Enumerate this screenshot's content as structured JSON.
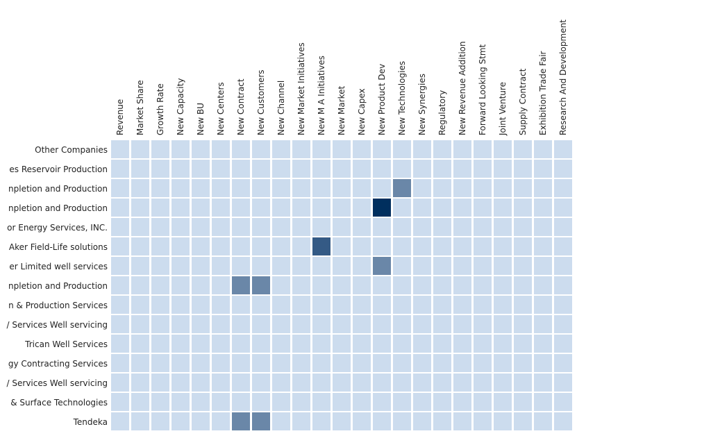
{
  "chart_data": {
    "type": "heatmap",
    "columns": [
      "Revenue",
      "Market Share",
      "Growth Rate",
      "New Capacity",
      "New BU",
      "New Centers",
      "New Contract",
      "New Customers",
      "New Channel",
      "New Market Initiatives",
      "New M A Initiatives",
      "New Market",
      "New Capex",
      "New Product Dev",
      "New Technologies",
      "New Synergies",
      "Regulatory",
      "New Revenue Addition",
      "Forward Looking Stmt",
      "Joint Venture",
      "Supply Contract",
      "Exhibition Trade Fair",
      "Research And Development"
    ],
    "rows": [
      "Other Companies",
      "es Reservoir Production",
      "npletion and Production",
      "npletion and Production",
      "or Energy Services, INC.",
      "Aker Field-Life solutions",
      "er Limited well services",
      "npletion and Production",
      "n & Production Services",
      "/ Services Well servicing",
      "Trican Well Services",
      "gy Contracting Services",
      "/ Services Well servicing",
      "& Surface Technologies",
      "Tendeka"
    ],
    "values": [
      [
        0,
        0,
        0,
        0,
        0,
        0,
        0,
        0,
        0,
        0,
        0,
        0,
        0,
        0,
        0,
        0,
        0,
        0,
        0,
        0,
        0,
        0,
        0
      ],
      [
        0,
        0,
        0,
        0,
        0,
        0,
        0,
        0,
        0,
        0,
        0,
        0,
        0,
        0,
        0,
        0,
        0,
        0,
        0,
        0,
        0,
        0,
        0
      ],
      [
        0,
        0,
        0,
        0,
        0,
        0,
        0,
        0,
        0,
        0,
        0,
        0,
        0,
        0,
        1,
        0,
        0,
        0,
        0,
        0,
        0,
        0,
        0
      ],
      [
        0,
        0,
        0,
        0,
        0,
        0,
        0,
        0,
        0,
        0,
        0,
        0,
        0,
        3,
        0,
        0,
        0,
        0,
        0,
        0,
        0,
        0,
        0
      ],
      [
        0,
        0,
        0,
        0,
        0,
        0,
        0,
        0,
        0,
        0,
        0,
        0,
        0,
        0,
        0,
        0,
        0,
        0,
        0,
        0,
        0,
        0,
        0
      ],
      [
        0,
        0,
        0,
        0,
        0,
        0,
        0,
        0,
        0,
        0,
        2,
        0,
        0,
        0,
        0,
        0,
        0,
        0,
        0,
        0,
        0,
        0,
        0
      ],
      [
        0,
        0,
        0,
        0,
        0,
        0,
        0,
        0,
        0,
        0,
        0,
        0,
        0,
        1,
        0,
        0,
        0,
        0,
        0,
        0,
        0,
        0,
        0
      ],
      [
        0,
        0,
        0,
        0,
        0,
        0,
        1,
        1,
        0,
        0,
        0,
        0,
        0,
        0,
        0,
        0,
        0,
        0,
        0,
        0,
        0,
        0,
        0
      ],
      [
        0,
        0,
        0,
        0,
        0,
        0,
        0,
        0,
        0,
        0,
        0,
        0,
        0,
        0,
        0,
        0,
        0,
        0,
        0,
        0,
        0,
        0,
        0
      ],
      [
        0,
        0,
        0,
        0,
        0,
        0,
        0,
        0,
        0,
        0,
        0,
        0,
        0,
        0,
        0,
        0,
        0,
        0,
        0,
        0,
        0,
        0,
        0
      ],
      [
        0,
        0,
        0,
        0,
        0,
        0,
        0,
        0,
        0,
        0,
        0,
        0,
        0,
        0,
        0,
        0,
        0,
        0,
        0,
        0,
        0,
        0,
        0
      ],
      [
        0,
        0,
        0,
        0,
        0,
        0,
        0,
        0,
        0,
        0,
        0,
        0,
        0,
        0,
        0,
        0,
        0,
        0,
        0,
        0,
        0,
        0,
        0
      ],
      [
        0,
        0,
        0,
        0,
        0,
        0,
        0,
        0,
        0,
        0,
        0,
        0,
        0,
        0,
        0,
        0,
        0,
        0,
        0,
        0,
        0,
        0,
        0
      ],
      [
        0,
        0,
        0,
        0,
        0,
        0,
        0,
        0,
        0,
        0,
        0,
        0,
        0,
        0,
        0,
        0,
        0,
        0,
        0,
        0,
        0,
        0,
        0
      ],
      [
        0,
        0,
        0,
        0,
        0,
        0,
        1,
        1,
        0,
        0,
        0,
        0,
        0,
        0,
        0,
        0,
        0,
        0,
        0,
        0,
        0,
        0,
        0
      ]
    ],
    "color_scale": [
      "#ccdcee",
      "#6a87a8",
      "#345a85",
      "#002f5e"
    ],
    "legend": "none",
    "grid": false
  }
}
